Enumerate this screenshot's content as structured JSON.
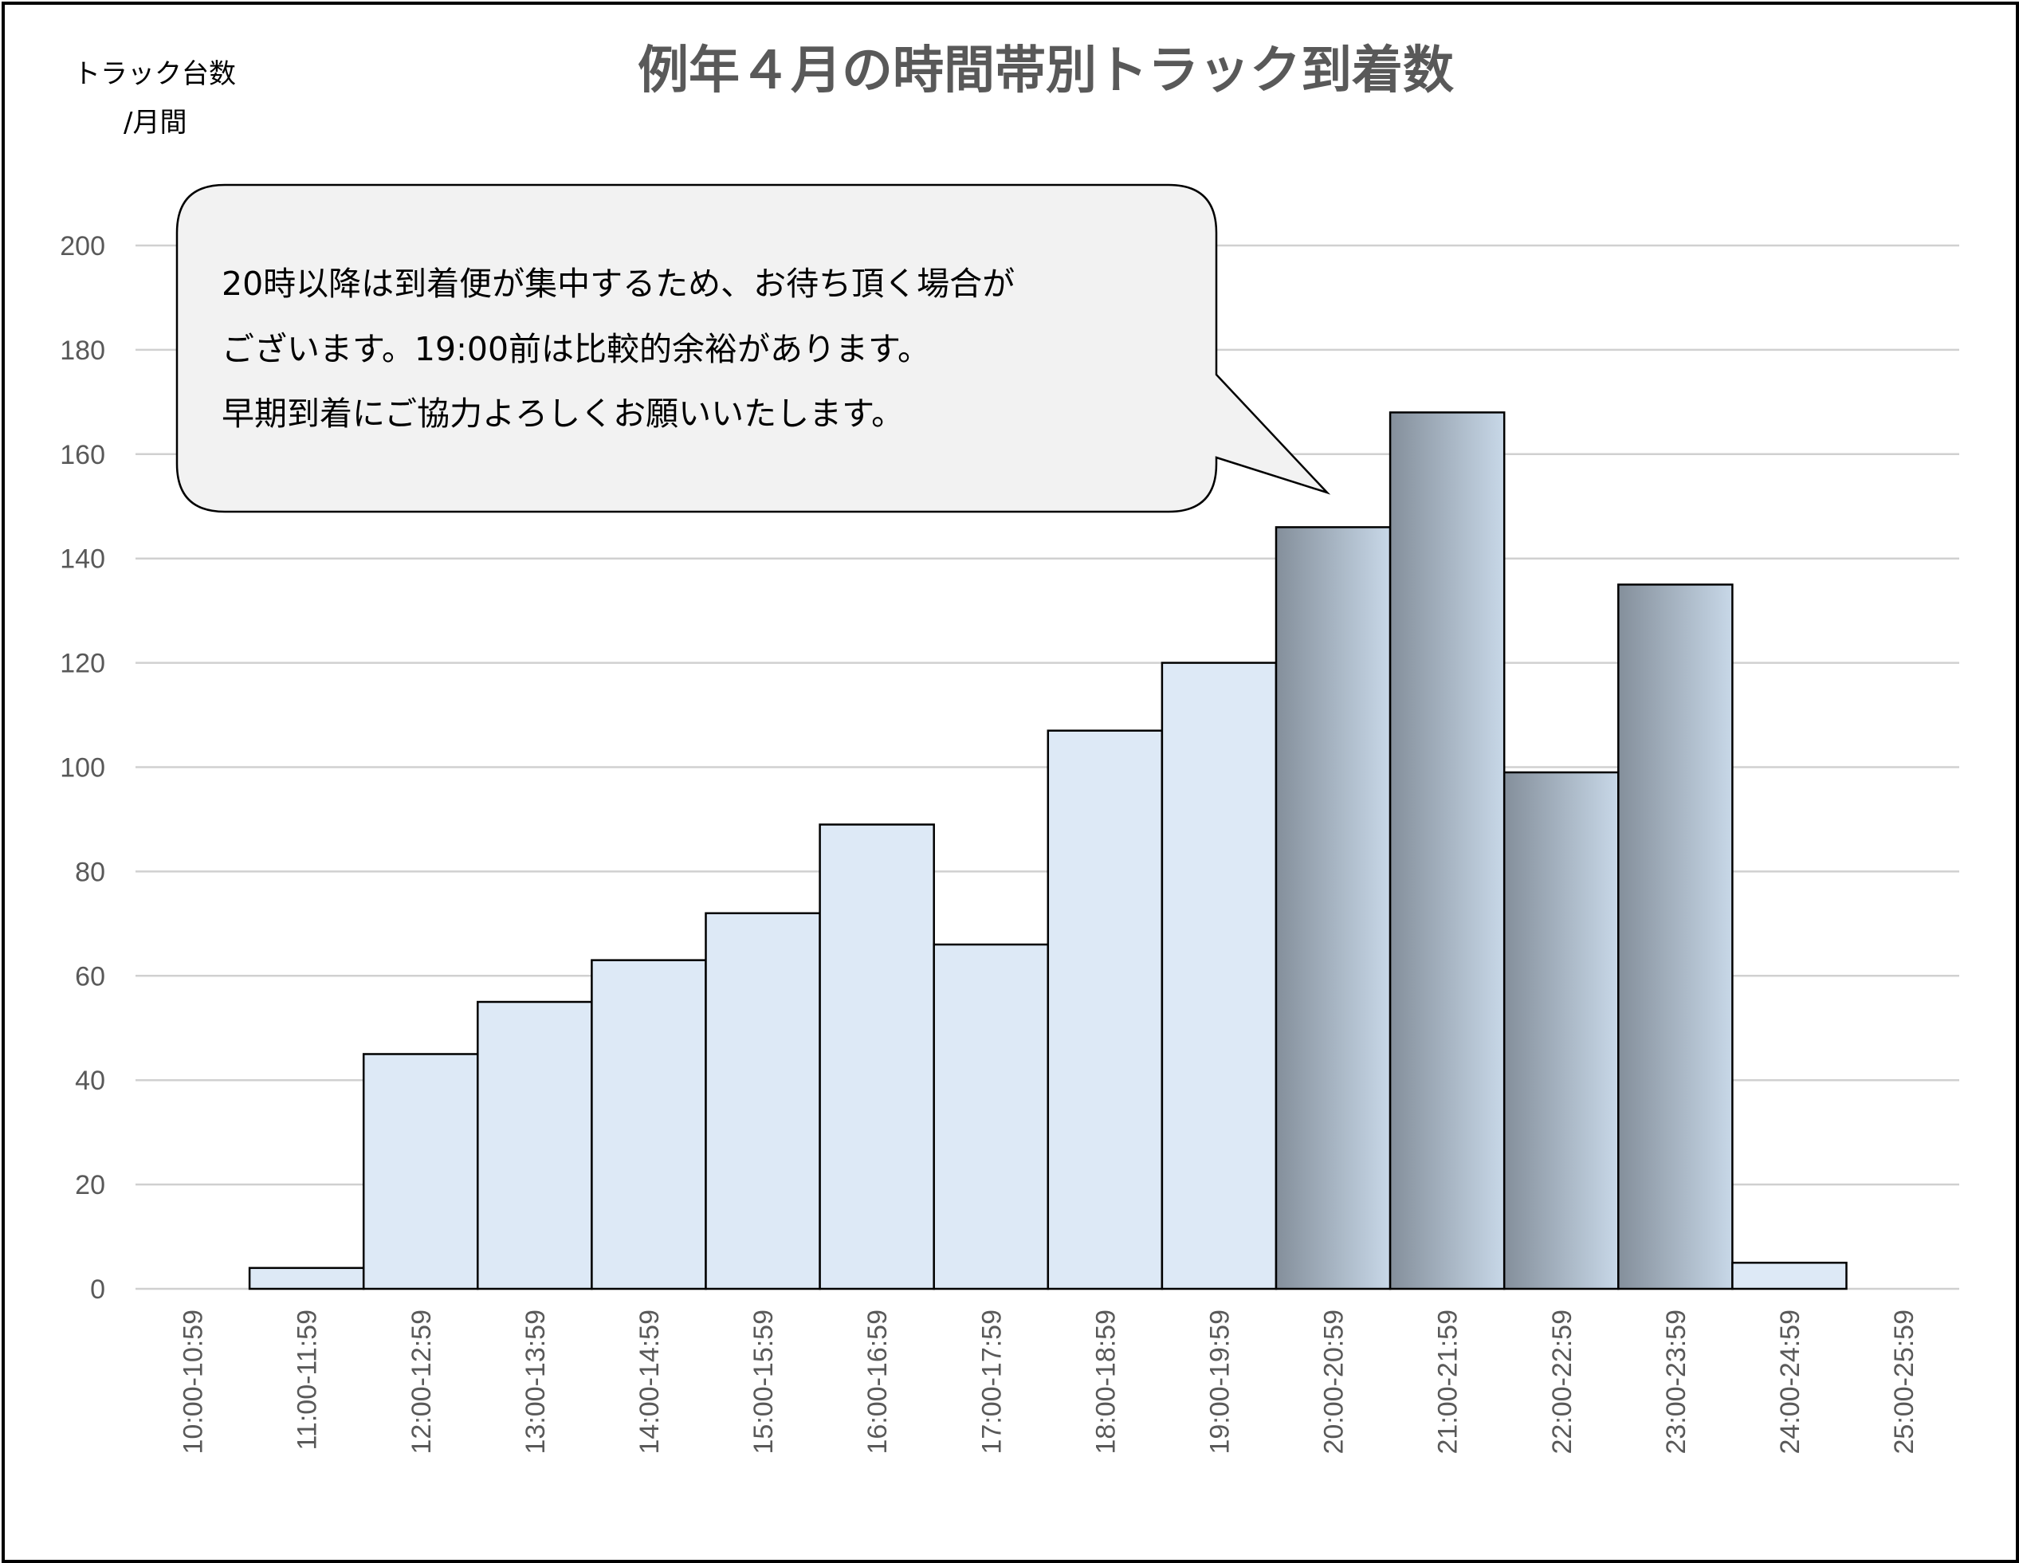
{
  "chart_data": {
    "type": "bar",
    "title": "例年４月の時間帯別トラック到着数",
    "ylabel_line1": "トラック台数",
    "ylabel_line2": "/月間",
    "categories": [
      "10:00-10:59",
      "11:00-11:59",
      "12:00-12:59",
      "13:00-13:59",
      "14:00-14:59",
      "15:00-15:59",
      "16:00-16:59",
      "17:00-17:59",
      "18:00-18:59",
      "19:00-19:59",
      "20:00-20:59",
      "21:00-21:59",
      "22:00-22:59",
      "23:00-23:59",
      "24:00-24:59",
      "25:00-25:59"
    ],
    "values": [
      0,
      4,
      45,
      55,
      63,
      72,
      89,
      66,
      107,
      120,
      146,
      168,
      99,
      135,
      5,
      0
    ],
    "highlighted": [
      false,
      false,
      false,
      false,
      false,
      false,
      false,
      false,
      false,
      false,
      true,
      true,
      true,
      true,
      false,
      false
    ],
    "ylim": [
      0,
      200
    ],
    "yticks": [
      0,
      20,
      40,
      60,
      80,
      100,
      120,
      140,
      160,
      180,
      200
    ],
    "grid": true,
    "colors": {
      "bar_fill": "#dde9f6",
      "highlight_dark": "#848f9b",
      "highlight_light": "#c8d8e8",
      "bar_stroke": "#000000",
      "grid": "#d0d0d0"
    },
    "annotation": {
      "lines": [
        "20時以降は到着便が集中するため、お待ち頂く場合が",
        "ございます。19:00前は比較的余裕があります。",
        "早期到着にご協力よろしくお願いいたします。"
      ]
    }
  }
}
